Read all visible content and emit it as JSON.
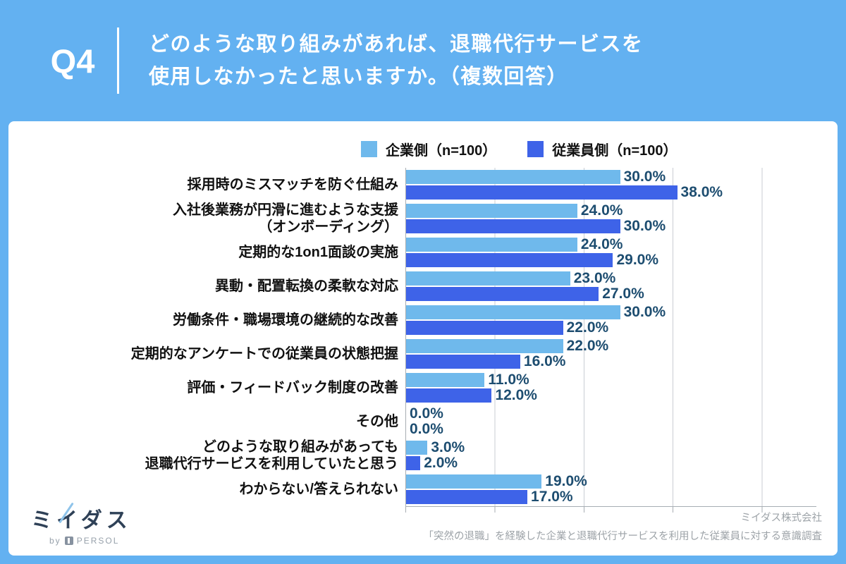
{
  "header": {
    "question_no": "Q4",
    "title_lines": [
      "どのような取り組みがあれば、退職代行サービスを",
      "使用しなかったと思いますか。（複数回答）"
    ]
  },
  "legend": [
    {
      "label": "企業側（n=100）"
    },
    {
      "label": "従業員側（n=100）"
    }
  ],
  "chart_data": {
    "type": "bar",
    "orientation": "horizontal",
    "title": "どのような取り組みがあれば、退職代行サービスを使用しなかったと思いますか。（複数回答）",
    "categories": [
      [
        "採用時のミスマッチを防ぐ仕組み"
      ],
      [
        "入社後業務が円滑に進むような支援",
        "（オンボーディング）"
      ],
      [
        "定期的な1on1面談の実施"
      ],
      [
        "異動・配置転換の柔軟な対応"
      ],
      [
        "労働条件・職場環境の継続的な改善"
      ],
      [
        "定期的なアンケートでの従業員の状態把握"
      ],
      [
        "評価・フィードバック制度の改善"
      ],
      [
        "その他"
      ],
      [
        "どのような取り組みがあっても",
        "退職代行サービスを利用していたと思う"
      ],
      [
        "わからない/答えられない"
      ]
    ],
    "series": [
      {
        "name": "企業側（n=100）",
        "color": "#6FB9EC",
        "values": [
          30.0,
          24.0,
          24.0,
          23.0,
          30.0,
          22.0,
          11.0,
          0.0,
          3.0,
          19.0
        ]
      },
      {
        "name": "従業員側（n=100）",
        "color": "#3E63E8",
        "values": [
          38.0,
          30.0,
          29.0,
          27.0,
          22.0,
          16.0,
          12.0,
          0.0,
          2.0,
          17.0
        ]
      }
    ],
    "value_suffix": "%",
    "value_decimals": 1,
    "xlim": [
      0,
      50
    ],
    "gridlines_pct": [
      12.5,
      25,
      37.5,
      50
    ],
    "grid": "vertical-lines",
    "legend_position": "top"
  },
  "footer": {
    "logo_text": "ミイダス",
    "logo_by": "by",
    "logo_brand": "PERSOL",
    "source_company": "ミイダス株式会社",
    "source_description": "「突然の退職」を経験した企業と退職代行サービスを利用した従業員に対する意識調査"
  },
  "colors": {
    "page_bg": "#63B1F1",
    "card_bg": "#FFFFFF",
    "bar_company": "#6FB9EC",
    "bar_employee": "#3E63E8",
    "value_text": "#1D4D70",
    "gridline": "#C9CDD3",
    "axis": "#A7ADB3",
    "header_text": "#FFFFFF",
    "label_text": "#111111",
    "footer_text": "#9DA3A8",
    "logo_navy": "#2F4157"
  }
}
